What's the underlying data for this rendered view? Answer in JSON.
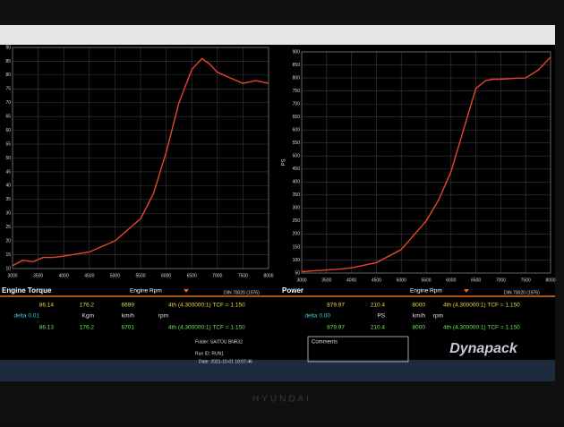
{
  "chart_data": [
    {
      "type": "line",
      "title": "Engine Torque",
      "xlabel": "Engine Rpm",
      "standard": "DIN 70020 (1976)",
      "x": [
        3000,
        3200,
        3400,
        3600,
        3800,
        4000,
        4500,
        5000,
        5500,
        5750,
        6000,
        6250,
        6500,
        6700,
        6850,
        7000,
        7250,
        7500,
        7750,
        8000
      ],
      "values": [
        11,
        13,
        12.5,
        14,
        14,
        14.5,
        16,
        20,
        28,
        37,
        52,
        70,
        82,
        86,
        84,
        81,
        79,
        77,
        78,
        77
      ],
      "color": "#e8452c",
      "xlim": [
        3000,
        8000
      ],
      "xticks": [
        3000,
        3500,
        4000,
        4500,
        5000,
        5500,
        6000,
        6500,
        7000,
        7500,
        8000
      ],
      "ylim": [
        10,
        90
      ],
      "yticks": [
        10,
        15,
        20,
        25,
        30,
        35,
        40,
        45,
        50,
        55,
        60,
        65,
        70,
        75,
        80,
        85,
        90
      ],
      "grid": true
    },
    {
      "type": "line",
      "title": "Power",
      "xlabel": "Engine Rpm",
      "ylabel": "PS",
      "standard": "DIN 70020 (1976)",
      "x": [
        3000,
        3200,
        3400,
        3600,
        3800,
        4000,
        4500,
        5000,
        5500,
        5750,
        6000,
        6250,
        6500,
        6700,
        6850,
        7000,
        7250,
        7500,
        7750,
        8000
      ],
      "values": [
        55,
        58,
        60,
        63,
        66,
        70,
        90,
        140,
        250,
        330,
        440,
        600,
        760,
        790,
        795,
        795,
        798,
        800,
        830,
        880
      ],
      "color": "#e8452c",
      "xlim": [
        3000,
        8000
      ],
      "xticks": [
        3000,
        3500,
        4000,
        4500,
        5000,
        5500,
        6000,
        6500,
        7000,
        7500,
        8000
      ],
      "ylim": [
        50,
        900
      ],
      "yticks": [
        50,
        100,
        150,
        200,
        250,
        300,
        350,
        400,
        450,
        500,
        550,
        600,
        650,
        700,
        750,
        800,
        850,
        900
      ],
      "grid": true
    }
  ],
  "readout": [
    {
      "row1": [
        "86.14",
        "176.2",
        "6699",
        "4th (4.300000:1) TCF = 1.150"
      ],
      "row2": [
        "delta 0.01",
        "Kgm",
        "km/h",
        "rpm"
      ],
      "row3": [
        "86.13",
        "176.2",
        "6701",
        "4th (4.300000:1) TCF = 1.150"
      ]
    },
    {
      "row1": [
        "879.97",
        "210.4",
        "8000",
        "4th (4.300000:1) TCF = 1.150"
      ],
      "row2": [
        "delta 0.00",
        "PS",
        "km/h",
        "rpm"
      ],
      "row3": [
        "879.97",
        "210.4",
        "8000",
        "4th (4.300000:1) TCF = 1.150"
      ]
    }
  ],
  "info": {
    "folder": "Folder: SAITOU BNR32",
    "run": "Run ID: RUN1",
    "date": "Date: 2021-10-01 18:07:46",
    "comments": "Comments"
  },
  "logo": "Dynapack",
  "brand": "HYUNDAI"
}
